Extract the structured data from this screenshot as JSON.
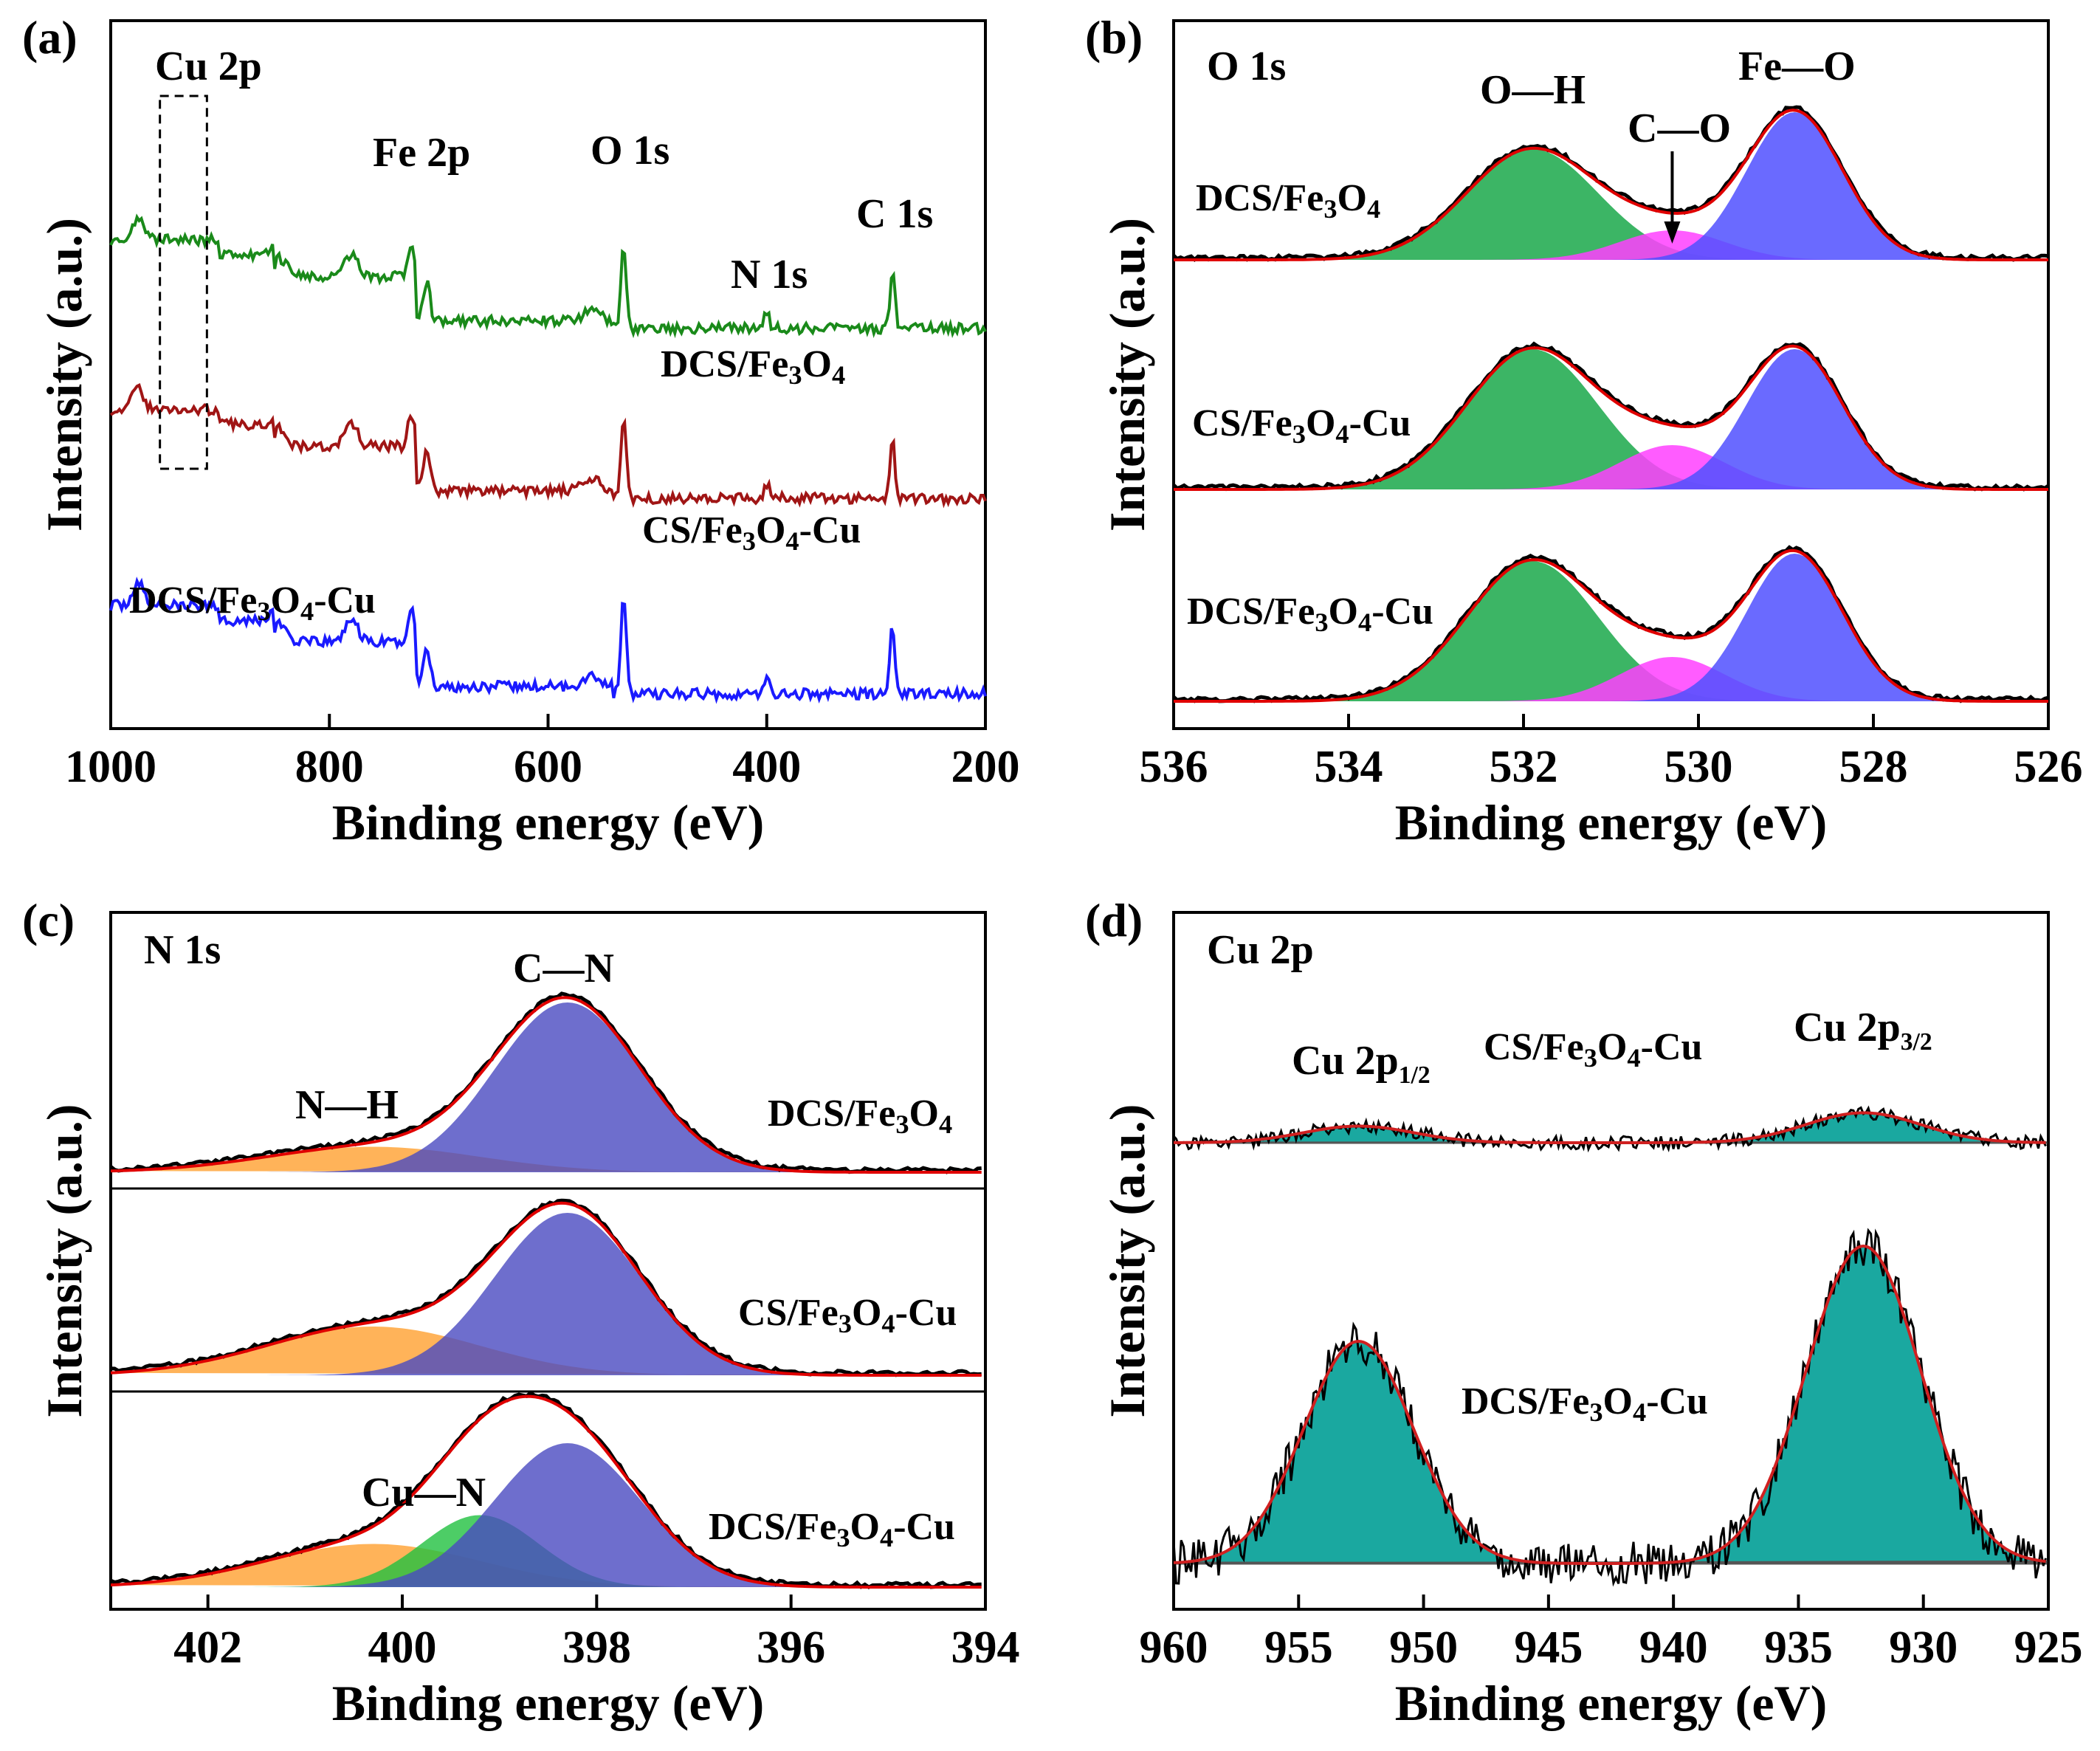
{
  "chart_data": [
    {
      "type": "line",
      "panel_label": "(a)",
      "title": "",
      "xlabel": "Binding energy (eV)",
      "ylabel": "Intensity (a.u.)",
      "xlim": [
        1000,
        200
      ],
      "xticks": [
        "1000",
        "800",
        "600",
        "400",
        "200"
      ],
      "peak_labels": [
        {
          "text": "Cu 2p",
          "energy": 945
        },
        {
          "text": "Fe 2p",
          "energy": 712
        },
        {
          "text": "O 1s",
          "energy": 531
        },
        {
          "text": "N 1s",
          "energy": 400
        },
        {
          "text": "C 1s",
          "energy": 285
        }
      ],
      "series": [
        {
          "name": "DCS/Fe3O4-Cu",
          "label_main": "DCS/Fe",
          "sub1": "3",
          "mid": "O",
          "sub2": "4",
          "suffix": "-Cu",
          "color": "#1a1aff"
        },
        {
          "name": "DCS/Fe3O4",
          "label_main": "DCS/Fe",
          "sub1": "3",
          "mid": "O",
          "sub2": "4",
          "suffix": "",
          "color": "#a01515"
        },
        {
          "name": "CS/Fe3O4-Cu",
          "label_main": "CS/Fe",
          "sub1": "3",
          "mid": "O",
          "sub2": "4",
          "suffix": "-Cu",
          "color": "#1a8a1a"
        }
      ]
    },
    {
      "type": "area",
      "panel_label": "(b)",
      "title": "O 1s",
      "xlabel": "Binding energy (eV)",
      "ylabel": "Intensity (a.u.)",
      "xlim": [
        536,
        526
      ],
      "xticks": [
        "536",
        "534",
        "532",
        "530",
        "528",
        "526"
      ],
      "components": [
        {
          "name": "O—H",
          "center": 531.9,
          "color": "#1aa84a"
        },
        {
          "name": "C—O",
          "center": 530.3,
          "color": "#ff40ff"
        },
        {
          "name": "Fe—O",
          "center": 528.9,
          "color": "#5050ff"
        }
      ],
      "samples": [
        {
          "label_main": "DCS/Fe",
          "sub1": "3",
          "mid": "O",
          "sub2": "4",
          "suffix": "",
          "areas": [
            0.75,
            0.2,
            1.0
          ]
        },
        {
          "label_main": "CS/Fe",
          "sub1": "3",
          "mid": "O",
          "sub2": "4",
          "suffix": "-Cu",
          "areas": [
            0.95,
            0.3,
            0.95
          ]
        },
        {
          "label_main": "DCS/Fe",
          "sub1": "3",
          "mid": "O",
          "sub2": "4",
          "suffix": "-Cu",
          "areas": [
            0.95,
            0.3,
            1.0
          ]
        }
      ]
    },
    {
      "type": "area",
      "panel_label": "(c)",
      "title": "N 1s",
      "xlabel": "Binding energy (eV)",
      "ylabel": "Intensity (a.u.)",
      "xlim": [
        403,
        394
      ],
      "xticks": [
        "402",
        "400",
        "398",
        "396",
        "394"
      ],
      "components": [
        {
          "name": "N—H",
          "center": 400.3,
          "color": "#ffa030"
        },
        {
          "name": "Cu—N",
          "center": 399.2,
          "color": "#20c040"
        },
        {
          "name": "C—N",
          "center": 398.3,
          "color": "#4a4ac0"
        }
      ],
      "samples": [
        {
          "label_main": "DCS/Fe",
          "sub1": "3",
          "mid": "O",
          "sub2": "4",
          "suffix": "",
          "areas": [
            0.15,
            0,
            1.0
          ]
        },
        {
          "label_main": "CS/Fe",
          "sub1": "3",
          "mid": "O",
          "sub2": "4",
          "suffix": "-Cu",
          "areas": [
            0.3,
            0,
            1.0
          ]
        },
        {
          "label_main": "DCS/Fe",
          "sub1": "3",
          "mid": "O",
          "sub2": "4",
          "suffix": "-Cu",
          "areas": [
            0.3,
            0.5,
            1.0
          ]
        }
      ]
    },
    {
      "type": "area",
      "panel_label": "(d)",
      "title": "Cu 2p",
      "xlabel": "Binding energy (eV)",
      "ylabel": "Intensity (a.u.)",
      "xlim": [
        960,
        925
      ],
      "xticks": [
        "960",
        "955",
        "950",
        "945",
        "940",
        "935",
        "930",
        "925"
      ],
      "components": [
        {
          "name": "Cu 2p",
          "sub": "1/2",
          "center": 952.6,
          "color": "#1aa8a0"
        },
        {
          "name": "Cu 2p",
          "sub": "3/2",
          "center": 932.4,
          "color": "#1aa8a0"
        }
      ],
      "samples": [
        {
          "label_main": "CS/Fe",
          "sub1": "3",
          "mid": "O",
          "sub2": "4",
          "suffix": "-Cu",
          "areas": [
            0.25,
            0.45
          ]
        },
        {
          "label_main": "DCS/Fe",
          "sub1": "3",
          "mid": "O",
          "sub2": "4",
          "suffix": "-Cu",
          "areas": [
            0.7,
            1.0
          ]
        }
      ]
    }
  ]
}
